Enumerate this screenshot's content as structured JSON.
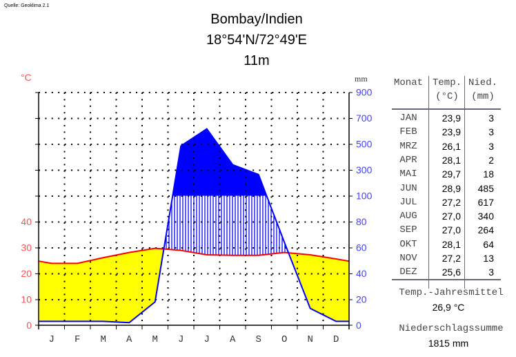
{
  "source": "Quelle: Geoklima 2.1",
  "chart_data": {
    "type": "line",
    "title": [
      "Bombay/Indien",
      "18°54'N/72°49'E",
      "11m"
    ],
    "left_axis_label": "°C",
    "right_axis_label": "mm",
    "categories": [
      "J",
      "F",
      "M",
      "A",
      "M",
      "J",
      "J",
      "A",
      "S",
      "O",
      "N",
      "D"
    ],
    "temp_ticks": [
      0,
      10,
      20,
      30,
      40
    ],
    "precip_ticks": [
      0,
      20,
      40,
      60,
      80,
      100,
      300,
      500,
      700,
      900
    ],
    "series": [
      {
        "name": "Temp. (°C)",
        "color": "#ff0000",
        "values": [
          23.9,
          23.9,
          26.1,
          28.1,
          29.7,
          28.9,
          27.2,
          27.0,
          27.0,
          28.1,
          27.2,
          25.6
        ]
      },
      {
        "name": "Nied. (mm)",
        "color": "#0000ff",
        "values": [
          3,
          3,
          3,
          2,
          18,
          485,
          617,
          340,
          264,
          64,
          13,
          3
        ]
      }
    ],
    "ylim_temp": [
      0,
      45
    ],
    "ylim_precip": [
      0,
      900
    ],
    "colors": {
      "arid": "#ffff00",
      "humid": "#0000ff",
      "temp": "#ff0000",
      "precip": "#0000ff",
      "temp_axis": "#ff5050",
      "precip_axis": "#4040ff"
    }
  },
  "table": {
    "headers": [
      [
        "Monat",
        ""
      ],
      [
        "Temp.",
        "(°C)"
      ],
      [
        "Nied.",
        "(mm)"
      ]
    ],
    "months": [
      "JAN",
      "FEB",
      "MRZ",
      "APR",
      "MAI",
      "JUN",
      "JUL",
      "AUG",
      "SEP",
      "OKT",
      "NOV",
      "DEZ"
    ],
    "temps": [
      "23,9",
      "23,9",
      "26,1",
      "28,1",
      "29,7",
      "28,9",
      "27,2",
      "27,0",
      "27,0",
      "28,1",
      "27,2",
      "25,6"
    ],
    "precips": [
      "3",
      "3",
      "3",
      "2",
      "18",
      "485",
      "617",
      "340",
      "264",
      "64",
      "13",
      "3"
    ],
    "mean_label": "Temp.-Jahresmittel",
    "mean_value": "26,9 °C",
    "sum_label": "Niederschlagssumme",
    "sum_value": "1815 mm"
  }
}
